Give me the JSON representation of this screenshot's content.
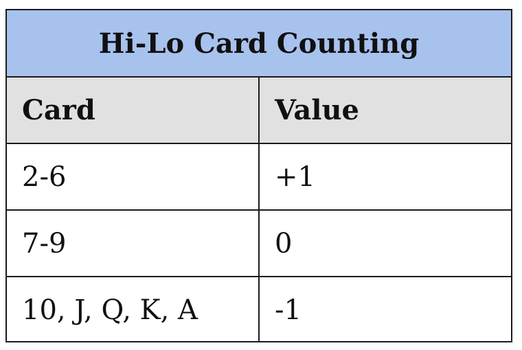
{
  "table": {
    "title": "Hi-Lo Card Counting",
    "columns": [
      "Card",
      "Value"
    ],
    "rows": [
      [
        "2-6",
        "+1"
      ],
      [
        "7-9",
        "0"
      ],
      [
        "10, J, Q, K, A",
        "-1"
      ]
    ]
  },
  "colors": {
    "title_background": "#a8c2ee",
    "header_background": "#e1e1e1",
    "border": "#1a1a1a"
  }
}
